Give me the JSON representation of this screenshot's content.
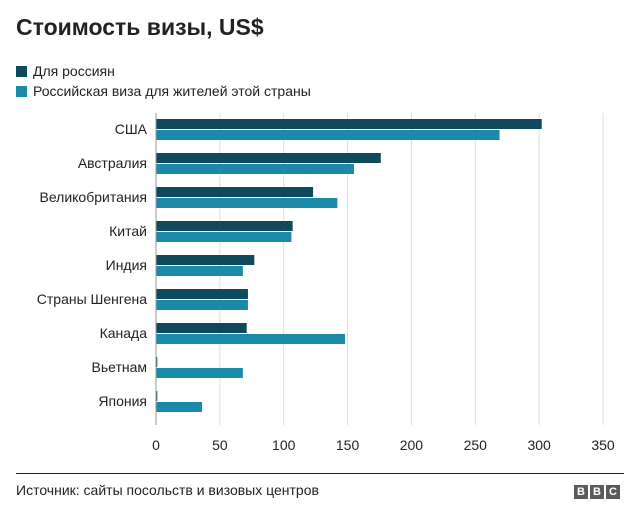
{
  "chart_data": {
    "type": "bar",
    "orientation": "horizontal",
    "title": "Стоимость визы, US$",
    "categories": [
      "США",
      "Австралия",
      "Великобритания",
      "Китай",
      "Индия",
      "Страны Шенгена",
      "Канада",
      "Вьетнам",
      "Япония"
    ],
    "series": [
      {
        "name": "Для россиян",
        "color": "#0f4a5c",
        "values": [
          302,
          176,
          123,
          107,
          77,
          72,
          71,
          1,
          1
        ]
      },
      {
        "name": "Российская виза для жителей этой страны",
        "color": "#1a8aa8",
        "values": [
          269,
          155,
          142,
          106,
          68,
          72,
          148,
          68,
          36
        ]
      }
    ],
    "xlim": [
      0,
      350
    ],
    "xticks": [
      "0",
      "50",
      "100",
      "150",
      "200",
      "250",
      "300",
      "350"
    ],
    "grid": true,
    "legend_position": "top-left"
  },
  "footer": {
    "source": "Источник: сайты посольств и визовых центров",
    "logo_letters": [
      "B",
      "B",
      "C"
    ]
  }
}
